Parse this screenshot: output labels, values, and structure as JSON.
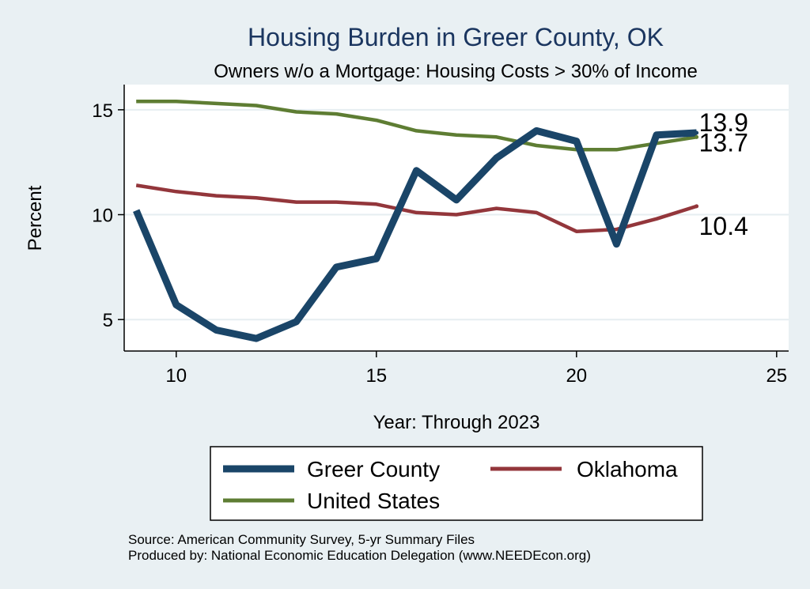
{
  "chart_data": {
    "type": "line",
    "title": "Housing Burden in Greer County, OK",
    "subtitle": "Owners w/o a Mortgage: Housing Costs > 30% of Income",
    "xlabel": "Year: Through 2023",
    "ylabel": "Percent",
    "xlim": [
      8.7,
      25.3
    ],
    "ylim": [
      3.5,
      16.2
    ],
    "xticks": [
      10,
      15,
      20,
      25
    ],
    "yticks": [
      5,
      10,
      15
    ],
    "grid": "horizontal",
    "x": [
      9,
      10,
      11,
      12,
      13,
      14,
      15,
      16,
      17,
      18,
      19,
      20,
      21,
      22,
      23
    ],
    "series": [
      {
        "name": "Greer County",
        "color": "#1a4568",
        "values": [
          10.2,
          5.7,
          4.5,
          4.1,
          4.9,
          7.5,
          7.9,
          12.1,
          10.7,
          12.7,
          14.0,
          13.5,
          8.6,
          13.8,
          13.9
        ],
        "end_label": "13.9"
      },
      {
        "name": "Oklahoma",
        "color": "#93363b",
        "values": [
          11.4,
          11.1,
          10.9,
          10.8,
          10.6,
          10.6,
          10.5,
          10.1,
          10.0,
          10.3,
          10.1,
          9.2,
          9.3,
          9.8,
          10.4
        ],
        "end_label": "10.4"
      },
      {
        "name": "United States",
        "color": "#5e7d33",
        "values": [
          15.4,
          15.4,
          15.3,
          15.2,
          14.9,
          14.8,
          14.5,
          14.0,
          13.8,
          13.7,
          13.3,
          13.1,
          13.1,
          13.4,
          13.7
        ],
        "end_label": "13.7"
      }
    ],
    "legend": {
      "position": "bottom",
      "entries": [
        "Greer County",
        "Oklahoma",
        "United States"
      ]
    },
    "notes": [
      "Source: American Community Survey, 5-yr Summary Files",
      "Produced by: National Economic Education Delegation (www.NEEDEcon.org)"
    ]
  }
}
